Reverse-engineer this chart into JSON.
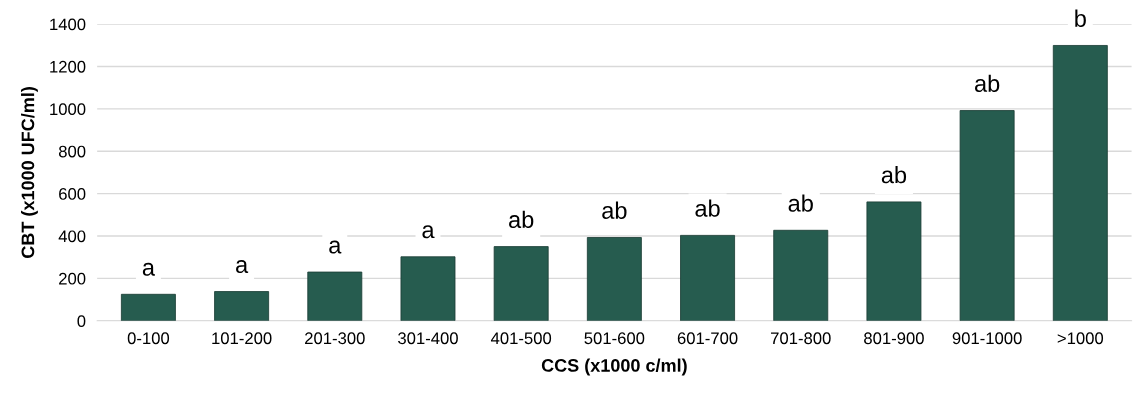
{
  "chart_data": {
    "type": "bar",
    "xlabel": "CCS (x1000 c/ml)",
    "ylabel": "CBT (x1000 UFC/ml)",
    "categories": [
      "0-100",
      "101-200",
      "201-300",
      "301-400",
      "401-500",
      "501-600",
      "601-700",
      "701-800",
      "801-900",
      "901-1000",
      ">1000"
    ],
    "values": [
      125,
      138,
      230,
      302,
      350,
      393,
      403,
      427,
      561,
      992,
      1299
    ],
    "value_labels": [
      "a",
      "a",
      "a",
      "a",
      "ab",
      "ab",
      "ab",
      "ab",
      "ab",
      "ab",
      "b"
    ],
    "color": "#265c4f",
    "ylim": [
      0,
      1400
    ],
    "yticks": [
      0,
      200,
      400,
      600,
      800,
      1000,
      1200,
      1400
    ],
    "grid": "y",
    "legend": false
  }
}
